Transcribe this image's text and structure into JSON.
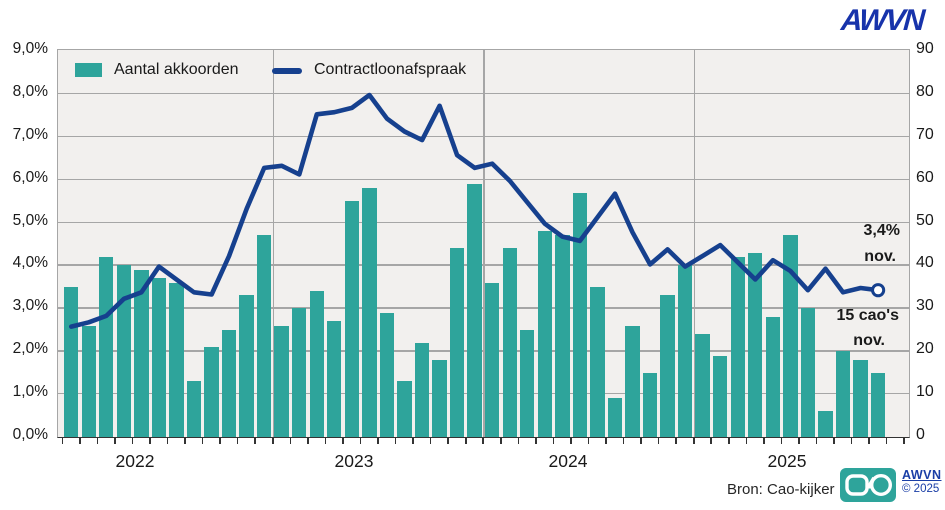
{
  "header": {
    "logo_text": "AWVN"
  },
  "legend": {
    "bars_label": "Aantal akkoorden",
    "line_label": "Contractloonafspraak"
  },
  "axes": {
    "left_ticks": [
      "9,0%",
      "8,0%",
      "7,0%",
      "6,0%",
      "5,0%",
      "4,0%",
      "3,0%",
      "2,0%",
      "1,0%",
      "0,0%"
    ],
    "right_ticks": [
      "90",
      "80",
      "70",
      "60",
      "50",
      "40",
      "30",
      "20",
      "10",
      "0"
    ],
    "year_labels": [
      "2022",
      "2023",
      "2024",
      "2025"
    ]
  },
  "annotations": {
    "line_value": "3,4%",
    "line_month": "nov.",
    "bars_value": "15 cao's",
    "bars_month": "nov."
  },
  "footer": {
    "source": "Bron: Cao-kijker",
    "logo_text": "AWVN",
    "copyright": "© 2025"
  },
  "colors": {
    "bar": "#2ea49b",
    "line": "#16408e",
    "logo_blue": "#1733ab",
    "brand_blue": "#1a3ea6",
    "plot_bg": "#f2f0ee",
    "grid": "#a6a6a6",
    "text": "#1a1a1a"
  },
  "chart_data": {
    "type": "bar+line",
    "title": "",
    "x_months": [
      "2022-01",
      "2022-02",
      "2022-03",
      "2022-04",
      "2022-05",
      "2022-06",
      "2022-07",
      "2022-08",
      "2022-09",
      "2022-10",
      "2022-11",
      "2022-12",
      "2023-01",
      "2023-02",
      "2023-03",
      "2023-04",
      "2023-05",
      "2023-06",
      "2023-07",
      "2023-08",
      "2023-09",
      "2023-10",
      "2023-11",
      "2023-12",
      "2024-01",
      "2024-02",
      "2024-03",
      "2024-04",
      "2024-05",
      "2024-06",
      "2024-07",
      "2024-08",
      "2024-09",
      "2024-10",
      "2024-11",
      "2024-12",
      "2025-01",
      "2025-02",
      "2025-03",
      "2025-04",
      "2025-05",
      "2025-06",
      "2025-07",
      "2025-08",
      "2025-09",
      "2025-10",
      "2025-11"
    ],
    "series": [
      {
        "name": "Aantal akkoorden",
        "type": "bar",
        "axis": "right",
        "values": [
          35,
          26,
          42,
          40,
          39,
          37,
          36,
          13,
          21,
          25,
          33,
          47,
          26,
          30,
          34,
          27,
          55,
          58,
          29,
          13,
          22,
          18,
          44,
          59,
          36,
          44,
          25,
          48,
          47,
          57,
          35,
          9,
          26,
          15,
          33,
          40,
          24,
          19,
          42,
          43,
          28,
          47,
          30,
          6,
          20,
          18,
          15
        ]
      },
      {
        "name": "Contractloonafspraak",
        "type": "line",
        "axis": "left",
        "unit": "%",
        "values": [
          2.55,
          2.65,
          2.8,
          3.2,
          3.35,
          3.95,
          3.65,
          3.35,
          3.3,
          4.2,
          5.3,
          6.25,
          6.3,
          6.1,
          7.5,
          7.55,
          7.65,
          7.95,
          7.4,
          7.1,
          6.9,
          7.7,
          6.55,
          6.25,
          6.35,
          5.95,
          5.45,
          4.95,
          4.65,
          4.55,
          5.1,
          5.65,
          4.75,
          4.0,
          4.35,
          3.95,
          4.2,
          4.45,
          4.05,
          3.65,
          4.1,
          3.85,
          3.4,
          3.9,
          3.35,
          3.45,
          3.4
        ]
      }
    ],
    "left_axis": {
      "min": 0,
      "max": 9,
      "unit": "%"
    },
    "right_axis": {
      "min": 0,
      "max": 90
    },
    "last_point_marker": "open-circle",
    "legend_position": "top-left-inside",
    "grid": true
  }
}
